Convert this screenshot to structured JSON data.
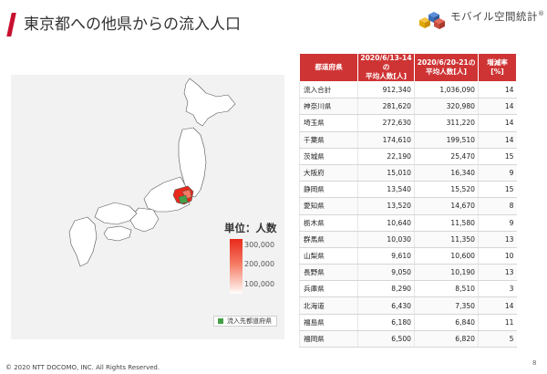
{
  "header": {
    "title": "東京都への他県からの流入人口",
    "brand": "モバイル空間統計",
    "brand_mark": "®"
  },
  "map": {
    "legend_title": "単位：人数",
    "legend_ticks": [
      "300,000",
      "200,000",
      "100,000"
    ],
    "inflow_legend": "流入先都道府県",
    "colors": {
      "scale_high": "#e8291b",
      "scale_low": "#ffffff",
      "inflow": "#44a047"
    }
  },
  "table": {
    "headers": [
      "都道府県",
      "2020/6/13-14の\n平均人数[人]",
      "2020/6/20-21の\n平均人数[人]",
      "増減率\n[%]"
    ],
    "rows": [
      [
        "流入合計",
        "912,340",
        "1,036,090",
        "14"
      ],
      [
        "神奈川県",
        "281,620",
        "320,980",
        "14"
      ],
      [
        "埼玉県",
        "272,630",
        "311,220",
        "14"
      ],
      [
        "千葉県",
        "174,610",
        "199,510",
        "14"
      ],
      [
        "茨城県",
        "22,190",
        "25,470",
        "15"
      ],
      [
        "大阪府",
        "15,010",
        "16,340",
        "9"
      ],
      [
        "静岡県",
        "13,540",
        "15,520",
        "15"
      ],
      [
        "愛知県",
        "13,520",
        "14,670",
        "8"
      ],
      [
        "栃木県",
        "10,640",
        "11,580",
        "9"
      ],
      [
        "群馬県",
        "10,030",
        "11,350",
        "13"
      ],
      [
        "山梨県",
        "9,610",
        "10,600",
        "10"
      ],
      [
        "長野県",
        "9,050",
        "10,190",
        "13"
      ],
      [
        "兵庫県",
        "8,290",
        "8,510",
        "3"
      ],
      [
        "北海道",
        "6,430",
        "7,350",
        "14"
      ],
      [
        "福島県",
        "6,180",
        "6,840",
        "11"
      ],
      [
        "福岡県",
        "6,500",
        "6,820",
        "5"
      ]
    ]
  },
  "footer": {
    "copyright": "© 2020 NTT DOCOMO, INC. All Rights Reserved.",
    "page_number": "8"
  }
}
